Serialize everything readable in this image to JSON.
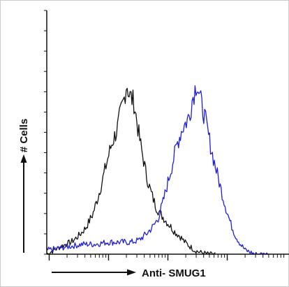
{
  "chart_data": {
    "type": "area",
    "title": "",
    "xlabel": "Anti- SMUG1",
    "ylabel": "# Cells",
    "x_scale": "log",
    "xlim": [
      0,
      1
    ],
    "ylim": [
      0,
      1
    ],
    "grid": false,
    "legend": "none",
    "series": [
      {
        "color": "#111111",
        "x": [
          0.0,
          0.03,
          0.06,
          0.1,
          0.13,
          0.16,
          0.19,
          0.21,
          0.23,
          0.25,
          0.27,
          0.29,
          0.3,
          0.31,
          0.32,
          0.33,
          0.34,
          0.35,
          0.36,
          0.37,
          0.38,
          0.39,
          0.4,
          0.41,
          0.43,
          0.45,
          0.47,
          0.49,
          0.51,
          0.53,
          0.55,
          0.57,
          0.59,
          0.61,
          0.63,
          0.65,
          0.67,
          0.7
        ],
        "y": [
          0.0,
          0.02,
          0.04,
          0.06,
          0.09,
          0.13,
          0.2,
          0.28,
          0.37,
          0.47,
          0.56,
          0.62,
          0.68,
          0.73,
          0.78,
          0.86,
          0.8,
          0.78,
          0.76,
          0.68,
          0.6,
          0.53,
          0.47,
          0.4,
          0.31,
          0.24,
          0.2,
          0.17,
          0.14,
          0.11,
          0.09,
          0.06,
          0.04,
          0.02,
          0.01,
          0.005,
          0.0,
          0.0
        ]
      },
      {
        "color": "#1f1fd8",
        "x": [
          0.0,
          0.05,
          0.1,
          0.15,
          0.2,
          0.25,
          0.3,
          0.35,
          0.38,
          0.41,
          0.44,
          0.46,
          0.48,
          0.5,
          0.52,
          0.54,
          0.56,
          0.58,
          0.59,
          0.6,
          0.61,
          0.62,
          0.63,
          0.64,
          0.65,
          0.66,
          0.67,
          0.68,
          0.7,
          0.72,
          0.74,
          0.76,
          0.78,
          0.8,
          0.82,
          0.84,
          0.86,
          0.88,
          0.92
        ],
        "y": [
          0.02,
          0.03,
          0.04,
          0.05,
          0.05,
          0.06,
          0.06,
          0.06,
          0.07,
          0.1,
          0.14,
          0.18,
          0.26,
          0.36,
          0.46,
          0.56,
          0.63,
          0.67,
          0.7,
          0.77,
          0.82,
          0.86,
          0.8,
          0.74,
          0.7,
          0.64,
          0.58,
          0.52,
          0.42,
          0.32,
          0.23,
          0.15,
          0.09,
          0.05,
          0.02,
          0.01,
          0.0,
          0.0,
          0.0
        ]
      }
    ]
  },
  "axes_color": "#111111",
  "frame_color": "#cccccc"
}
